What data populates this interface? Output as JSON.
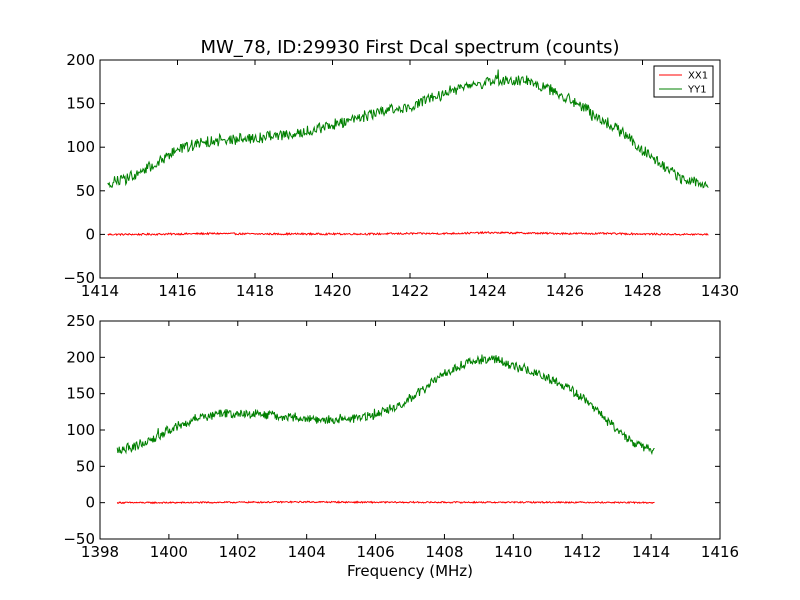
{
  "figure": {
    "title": "MW_78, ID:29930 First Dcal spectrum (counts)"
  },
  "chart_data": [
    {
      "type": "line",
      "title": "MW_78, ID:29930 First Dcal spectrum (counts)",
      "xlabel": "",
      "ylabel": "",
      "xlim": [
        1414,
        1430
      ],
      "ylim": [
        -50,
        200
      ],
      "x_ticks": [
        "1414",
        "1416",
        "1418",
        "1420",
        "1422",
        "1424",
        "1426",
        "1428",
        "1430"
      ],
      "y_ticks": [
        "−50",
        "0",
        "50",
        "100",
        "150",
        "200"
      ],
      "legend": {
        "position": "top-right",
        "entries": [
          "XX1",
          "YY1"
        ]
      },
      "grid": false,
      "x_range_data": [
        1414.2,
        1429.7
      ],
      "series": [
        {
          "name": "XX1",
          "color": "#ff0000",
          "x": [
            1414.2,
            1415,
            1416,
            1417,
            1418,
            1419,
            1420,
            1421,
            1422,
            1423,
            1424,
            1425,
            1426,
            1427,
            1428,
            1429,
            1429.7
          ],
          "values": [
            0,
            0,
            0.5,
            1,
            0.5,
            0.5,
            0.5,
            0.5,
            1,
            1,
            2,
            1.5,
            1,
            1,
            0.5,
            0,
            0
          ]
        },
        {
          "name": "YY1",
          "color": "#008000",
          "x": [
            1414.2,
            1415,
            1415.5,
            1416,
            1416.5,
            1417,
            1418,
            1419,
            1420,
            1421,
            1422,
            1422.5,
            1423,
            1423.5,
            1424,
            1424.5,
            1425,
            1425.5,
            1426,
            1426.5,
            1427,
            1427.5,
            1428,
            1428.5,
            1429,
            1429.7
          ],
          "values": [
            57,
            70,
            83,
            97,
            103,
            108,
            110,
            115,
            125,
            138,
            148,
            155,
            163,
            170,
            174,
            177,
            175,
            168,
            157,
            145,
            130,
            117,
            97,
            80,
            63,
            57
          ]
        }
      ]
    },
    {
      "type": "line",
      "title": "",
      "xlabel": "Frequency (MHz)",
      "ylabel": "",
      "xlim": [
        1398,
        1416
      ],
      "ylim": [
        -50,
        250
      ],
      "x_ticks": [
        "1398",
        "1400",
        "1402",
        "1404",
        "1406",
        "1408",
        "1410",
        "1412",
        "1414",
        "1416"
      ],
      "y_ticks": [
        "−50",
        "0",
        "50",
        "100",
        "150",
        "200",
        "250"
      ],
      "grid": false,
      "x_range_data": [
        1398.5,
        1414.1
      ],
      "series": [
        {
          "name": "XX1",
          "color": "#ff0000",
          "x": [
            1398.5,
            1400,
            1402,
            1404,
            1406,
            1408,
            1410,
            1412,
            1414.1
          ],
          "values": [
            0,
            0,
            0.5,
            1,
            0.5,
            0.5,
            0.5,
            0.5,
            0
          ]
        },
        {
          "name": "YY1",
          "color": "#008000",
          "x": [
            1398.5,
            1399,
            1399.5,
            1400,
            1400.5,
            1401,
            1401.5,
            1402,
            1402.5,
            1403,
            1403.5,
            1404,
            1404.5,
            1405,
            1405.5,
            1406,
            1406.5,
            1407,
            1407.5,
            1408,
            1408.5,
            1409,
            1409.5,
            1410,
            1410.5,
            1411,
            1411.5,
            1412,
            1412.5,
            1413,
            1413.5,
            1414.1
          ],
          "values": [
            72,
            77,
            87,
            100,
            110,
            118,
            122,
            123,
            122,
            120,
            118,
            115,
            113,
            115,
            117,
            122,
            130,
            143,
            160,
            178,
            190,
            197,
            198,
            188,
            180,
            172,
            160,
            145,
            123,
            100,
            82,
            70
          ]
        }
      ]
    }
  ]
}
